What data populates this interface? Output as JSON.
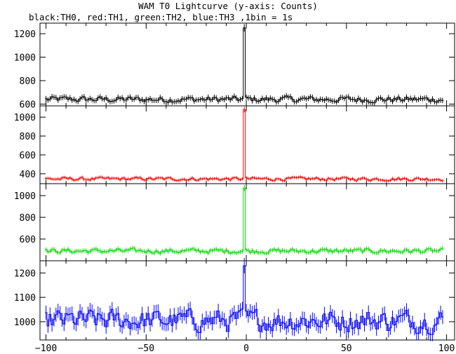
{
  "title": "WAM T0 Lightcurve (y-axis: Counts)",
  "subtitle": "black:TH0, red:TH1, green:TH2, blue:TH3 ,1bin = 1s",
  "chart_data": {
    "type": "line",
    "x_ticks": [
      -100,
      -50,
      0,
      50,
      100
    ],
    "xlim": [
      -103,
      104
    ],
    "x_spike": -1,
    "panels": [
      {
        "name": "TH0",
        "color": "#000000",
        "ylim": [
          585,
          1290
        ],
        "yticks": [
          600,
          800,
          1000,
          1200
        ],
        "baseline": 640,
        "noise": 22,
        "peak": 1250
      },
      {
        "name": "TH1",
        "color": "#ff0000",
        "ylim": [
          295,
          1120
        ],
        "yticks": [
          400,
          600,
          800,
          1000
        ],
        "baseline": 345,
        "noise": 15,
        "peak": 1080
      },
      {
        "name": "TH2",
        "color": "#00dd00",
        "ylim": [
          400,
          1110
        ],
        "yticks": [
          600,
          800,
          1000
        ],
        "baseline": 490,
        "noise": 18,
        "peak": 1070
      },
      {
        "name": "TH3",
        "color": "#0000ff",
        "ylim": [
          925,
          1250
        ],
        "yticks": [
          1000,
          1100,
          1200
        ],
        "baseline": 1005,
        "noise": 38,
        "peak": 1230
      }
    ]
  }
}
